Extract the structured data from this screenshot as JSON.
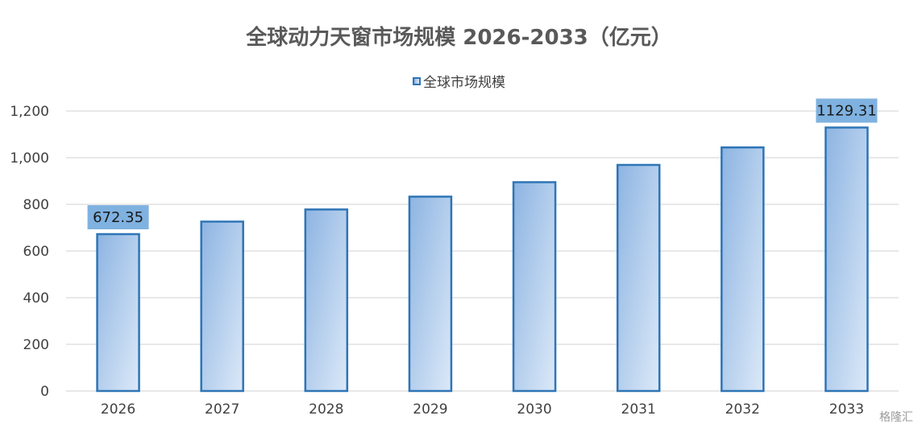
{
  "chart_data": {
    "type": "bar",
    "title": "全球动力天窗市场规模 2026-2033（亿元）",
    "categories": [
      "2026",
      "2027",
      "2028",
      "2029",
      "2030",
      "2031",
      "2032",
      "2033"
    ],
    "series": [
      {
        "name": "全球市场规模",
        "values": [
          672.35,
          726,
          778,
          833,
          895,
          969,
          1044,
          1129.31
        ]
      }
    ],
    "data_labels": [
      {
        "category": "2026",
        "text": "672.35"
      },
      {
        "category": "2033",
        "text": "1129.31"
      }
    ],
    "ylim": [
      0,
      1200
    ],
    "yticks": [
      0,
      200,
      400,
      600,
      800,
      1000,
      1200
    ],
    "ytick_labels": [
      "0",
      "200",
      "400",
      "600",
      "800",
      "1,000",
      "1,200"
    ],
    "grid": true,
    "legend_position": "top",
    "colors": {
      "bar_border": "#2E75B6",
      "bar_fill_dark": "#8DB4E2",
      "bar_fill_light": "#DCE9F8",
      "label_bg": "#7FB2E0",
      "grid": "#D9D9D9",
      "axis_text": "#404040"
    }
  },
  "watermark": "格隆汇"
}
